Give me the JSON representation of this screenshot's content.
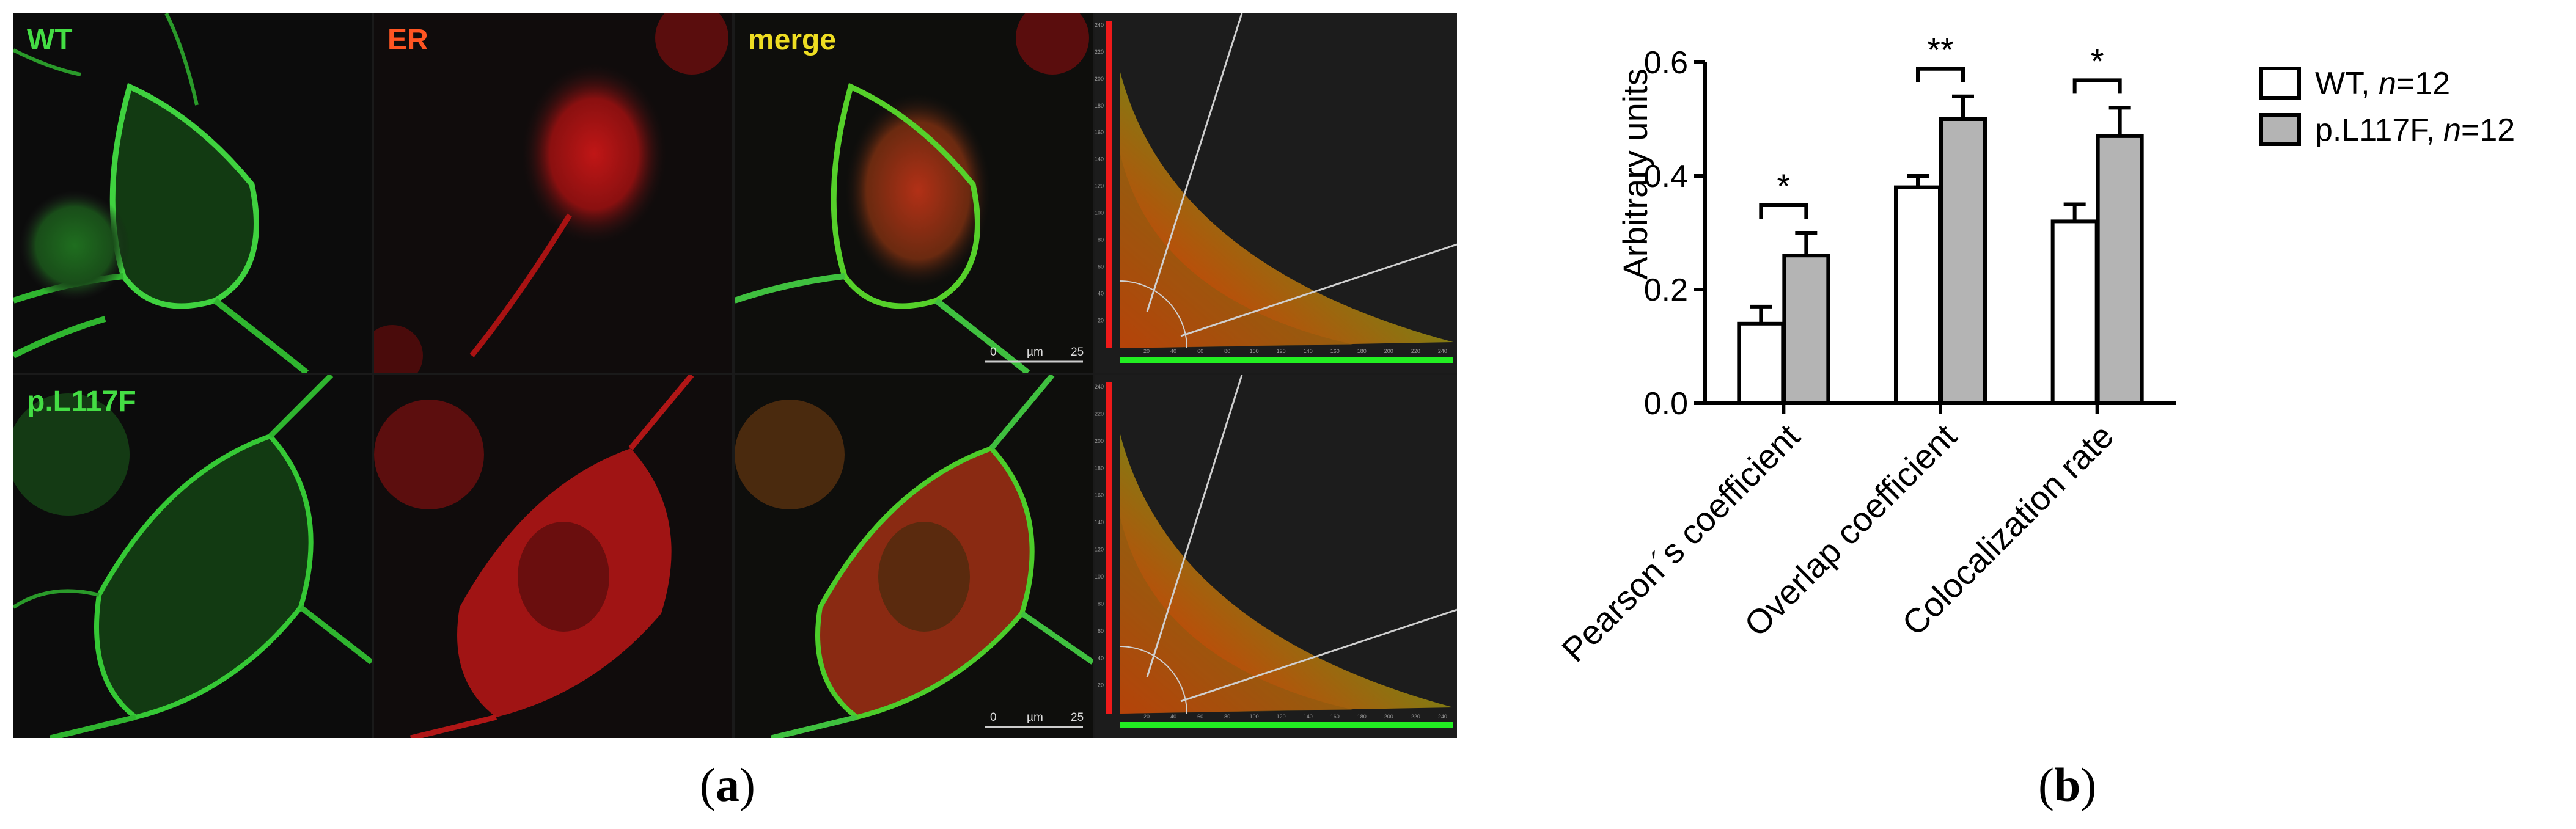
{
  "figure": {
    "panel_a": {
      "caption_letter": "a",
      "row_labels": [
        "WT",
        "p.L117F"
      ],
      "column_labels": [
        "ER",
        "merge"
      ],
      "scale_bar": {
        "start": "0",
        "unit": "µm",
        "end": "25"
      },
      "scatter_ticks_x": [
        "20",
        "40",
        "60",
        "80",
        "100",
        "120",
        "140",
        "160",
        "180",
        "200",
        "220",
        "240"
      ],
      "scatter_ticks_y": [
        "240",
        "220",
        "200",
        "180",
        "160",
        "140",
        "120",
        "100",
        "80",
        "60",
        "40",
        "20"
      ],
      "colors": {
        "wt_label": "#44dd44",
        "er_label": "#ff5522",
        "merge_label": "#eedd22",
        "mutant_label": "#44dd44"
      }
    },
    "panel_b": {
      "caption_letter": "b"
    }
  },
  "chart_data": {
    "type": "bar",
    "categories": [
      "Pearson´s coefficient",
      "Overlap coefficient",
      "Colocalization rate"
    ],
    "ylabel": "Arbitrary units",
    "ylim": [
      0,
      0.6
    ],
    "yticks": [
      "0.0",
      "0.2",
      "0.4",
      "0.6"
    ],
    "series": [
      {
        "name": "WT",
        "n_label": "n",
        "n_value": "=12",
        "fill": "#ffffff",
        "values": [
          0.14,
          0.38,
          0.32
        ],
        "errors": [
          0.03,
          0.02,
          0.03
        ]
      },
      {
        "name": "p.L117F",
        "n_label": "n",
        "n_value": "=12",
        "fill": "#b4b4b4",
        "values": [
          0.26,
          0.5,
          0.47
        ],
        "errors": [
          0.04,
          0.04,
          0.05
        ]
      }
    ],
    "significance": [
      "*",
      "**",
      "*"
    ],
    "legend_position": "top-right"
  }
}
